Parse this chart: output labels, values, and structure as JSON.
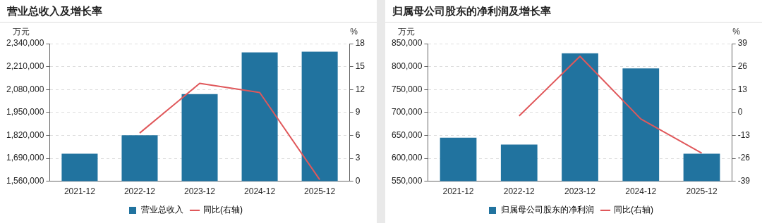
{
  "chart_data": [
    {
      "type": "bar",
      "title": "营业总收入及增长率",
      "ylabel": "万元",
      "y2label": "%",
      "categories": [
        "2021-12",
        "2022-12",
        "2023-12",
        "2024-12",
        "2025-12"
      ],
      "series": [
        {
          "name": "营业总收入",
          "color": "#21739f",
          "values": [
            1716000,
            1821000,
            2054000,
            2290000,
            2294000
          ]
        },
        {
          "name": "同比(右轴)",
          "type": "line",
          "axis": "y2",
          "color": "#e0585b",
          "values": [
            null,
            6.3,
            12.8,
            11.6,
            0.2
          ]
        }
      ],
      "ylim": [
        1560000,
        2340000
      ],
      "yticks": [
        {
          "value": 1560000,
          "label": "1,560,000"
        },
        {
          "value": 1690000,
          "label": "1,690,000"
        },
        {
          "value": 1820000,
          "label": "1,820,000"
        },
        {
          "value": 1950000,
          "label": "1,950,000"
        },
        {
          "value": 2080000,
          "label": "2,080,000"
        },
        {
          "value": 2210000,
          "label": "2,210,000"
        },
        {
          "value": 2340000,
          "label": "2,340,000"
        }
      ],
      "y2lim": [
        0,
        18
      ],
      "y2ticks": [
        0,
        3,
        6,
        9,
        12,
        15,
        18
      ],
      "grid": "y",
      "legend": "bottom",
      "marker": "none",
      "line_style": "solid"
    },
    {
      "type": "bar",
      "title": "归属母公司股东的净利润及增长率",
      "ylabel": "万元",
      "y2label": "%",
      "categories": [
        "2021-12",
        "2022-12",
        "2023-12",
        "2024-12",
        "2025-12"
      ],
      "series": [
        {
          "name": "归属母公司股东的净利润",
          "color": "#21739f",
          "values": [
            645000,
            630000,
            829000,
            796000,
            610000
          ]
        },
        {
          "name": "同比(右轴)",
          "type": "line",
          "axis": "y2",
          "color": "#e0585b",
          "values": [
            null,
            -2.0,
            31.8,
            -3.7,
            -23.1
          ]
        }
      ],
      "ylim": [
        550000,
        850000
      ],
      "yticks": [
        {
          "value": 550000,
          "label": "550,000"
        },
        {
          "value": 600000,
          "label": "600,000"
        },
        {
          "value": 650000,
          "label": "650,000"
        },
        {
          "value": 700000,
          "label": "700,000"
        },
        {
          "value": 750000,
          "label": "750,000"
        },
        {
          "value": 800000,
          "label": "800,000"
        },
        {
          "value": 850000,
          "label": "850,000"
        }
      ],
      "y2lim": [
        -39,
        39
      ],
      "y2ticks": [
        -39,
        -26,
        -13,
        0,
        13,
        26,
        39
      ],
      "grid": "y",
      "legend": "bottom",
      "marker": "none",
      "line_style": "solid"
    }
  ]
}
